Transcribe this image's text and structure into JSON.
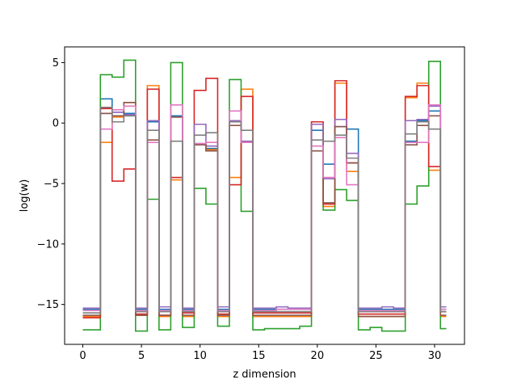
{
  "chart_data": {
    "type": "line",
    "drawstyle": "steps-mid",
    "xlabel": "z dimension",
    "ylabel": "log(w)",
    "xlim": [
      -1.55,
      32.55
    ],
    "ylim": [
      -18.3,
      6.3
    ],
    "xticks": [
      0,
      5,
      10,
      15,
      20,
      25,
      30
    ],
    "yticks": [
      5,
      0,
      -5,
      -10,
      -15
    ],
    "x": [
      0,
      1,
      2,
      3,
      4,
      5,
      6,
      7,
      8,
      9,
      10,
      11,
      12,
      13,
      14,
      15,
      16,
      17,
      18,
      19,
      20,
      21,
      22,
      23,
      24,
      25,
      26,
      27,
      28,
      29,
      30,
      31
    ],
    "series": [
      {
        "color": "#1f77b4",
        "values": [
          -15.4,
          -15.4,
          2.0,
          0.9,
          0.8,
          -15.4,
          0.1,
          -15.4,
          0.6,
          -15.4,
          -1.7,
          -2.1,
          -15.4,
          0.2,
          -1.6,
          -15.4,
          -15.4,
          -15.4,
          -15.4,
          -15.4,
          -0.6,
          -3.4,
          -0.3,
          -0.5,
          -15.4,
          -15.4,
          -15.4,
          -15.4,
          -1.5,
          0.2,
          1.0,
          -15.4
        ]
      },
      {
        "color": "#ff7f0e",
        "values": [
          -16.0,
          -16.0,
          -1.6,
          0.5,
          1.7,
          -15.9,
          3.1,
          -16.0,
          -4.7,
          -16.0,
          -1.7,
          -2.2,
          -16.0,
          -4.5,
          2.8,
          -16.0,
          -16.0,
          -16.0,
          -16.0,
          -16.0,
          -0.1,
          -6.9,
          3.3,
          -4.0,
          -16.0,
          -16.0,
          -16.0,
          -16.0,
          2.1,
          3.3,
          -3.9,
          -16.0
        ]
      },
      {
        "color": "#2ca02c",
        "values": [
          -17.1,
          -17.1,
          4.0,
          3.8,
          5.2,
          -17.2,
          -6.3,
          -17.1,
          5.0,
          -16.9,
          -5.4,
          -6.7,
          -16.8,
          3.6,
          -7.3,
          -17.1,
          -17.0,
          -17.0,
          -17.0,
          -16.8,
          -0.1,
          -7.2,
          -5.5,
          -6.4,
          -17.1,
          -16.9,
          -17.2,
          -17.2,
          -6.7,
          -5.2,
          5.1,
          -17.0
        ]
      },
      {
        "color": "#d62728",
        "values": [
          -16.1,
          -16.1,
          1.2,
          -4.8,
          -3.8,
          -15.8,
          2.8,
          -15.9,
          -4.5,
          -15.7,
          2.7,
          3.7,
          -15.8,
          -5.1,
          2.2,
          -15.7,
          -15.7,
          -15.7,
          -15.7,
          -15.7,
          0.1,
          -6.7,
          3.5,
          -3.3,
          -15.8,
          -15.8,
          -15.8,
          -15.8,
          2.2,
          3.1,
          -3.6,
          -15.6
        ]
      },
      {
        "color": "#9467bd",
        "values": [
          -15.3,
          -15.3,
          0.8,
          0.9,
          0.7,
          -15.3,
          0.2,
          -15.2,
          0.5,
          -15.3,
          -0.1,
          -1.9,
          -15.2,
          0.2,
          -1.5,
          -15.3,
          -15.3,
          -15.2,
          -15.3,
          -15.3,
          -0.1,
          -4.6,
          0.3,
          -2.5,
          -15.3,
          -15.3,
          -15.2,
          -15.3,
          0.2,
          0.3,
          1.4,
          -15.2
        ]
      },
      {
        "color": "#8c564b",
        "values": [
          -15.9,
          -15.9,
          0.8,
          0.6,
          1.7,
          -15.9,
          -1.4,
          -15.9,
          0.5,
          -15.9,
          -1.8,
          -2.3,
          -15.9,
          -0.2,
          -1.6,
          -15.9,
          -15.9,
          -15.9,
          -15.9,
          -15.9,
          -2.3,
          -6.6,
          -0.3,
          -3.3,
          -16.0,
          -16.0,
          -16.0,
          -16.0,
          -1.8,
          -0.2,
          0.6,
          -15.9
        ]
      },
      {
        "color": "#e377c2",
        "values": [
          -15.5,
          -15.5,
          -0.5,
          1.1,
          1.4,
          -15.5,
          -1.6,
          -15.5,
          1.5,
          -15.5,
          -1.7,
          -1.6,
          -15.5,
          1.0,
          -1.6,
          -15.5,
          -15.5,
          -15.4,
          -15.4,
          -15.4,
          -1.9,
          -4.5,
          -1.2,
          -5.1,
          -15.5,
          -15.5,
          -15.5,
          -15.5,
          -1.6,
          -1.6,
          1.5,
          -15.4
        ]
      },
      {
        "color": "#7f7f7f",
        "values": [
          -15.7,
          -15.7,
          1.3,
          0.1,
          0.6,
          -15.6,
          -0.6,
          -15.6,
          -1.5,
          -15.6,
          -1.0,
          -0.8,
          -15.6,
          0.1,
          -0.6,
          -15.6,
          -15.6,
          -15.6,
          -15.6,
          -15.6,
          -1.4,
          -1.5,
          -1.0,
          -2.9,
          -15.6,
          -15.6,
          -15.6,
          -15.6,
          -0.9,
          0.1,
          -0.5,
          -15.6
        ]
      }
    ]
  }
}
